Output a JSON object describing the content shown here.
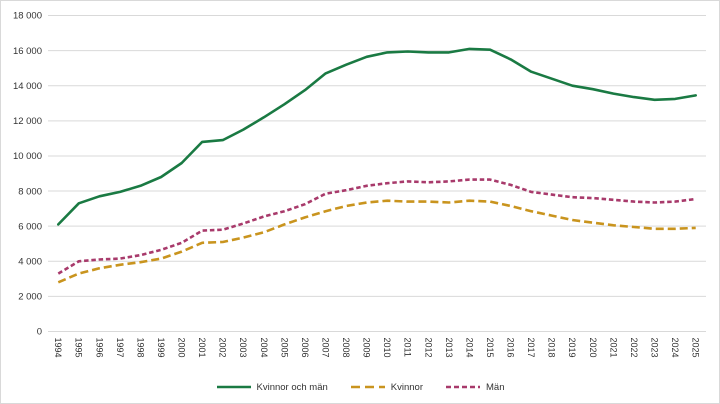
{
  "chart_data": {
    "type": "line",
    "title": "",
    "xlabel": "",
    "ylabel": "",
    "x_labels": [
      "1994",
      "1995",
      "1996",
      "1997",
      "1998",
      "1999",
      "2000",
      "2001",
      "2002",
      "2003",
      "2004",
      "2005",
      "2006",
      "2007",
      "2008",
      "2009",
      "2010",
      "2011",
      "2012",
      "2013",
      "2014",
      "2015",
      "2016",
      "2017",
      "2018",
      "2019",
      "2020",
      "2021",
      "2022",
      "2023",
      "2024",
      "2025"
    ],
    "series": [
      {
        "name": "Kvinnor och män",
        "color": "#1a7a43",
        "dash": "solid",
        "values": [
          6100,
          7300,
          7700,
          7950,
          8300,
          8800,
          9600,
          10800,
          10900,
          11500,
          12200,
          12950,
          13750,
          14700,
          15200,
          15650,
          15900,
          15950,
          15900,
          15900,
          16100,
          16050,
          15500,
          14800,
          14400,
          14000,
          13800,
          13550,
          13350,
          13200,
          13250,
          13450
        ]
      },
      {
        "name": "Kvinnor",
        "color": "#c9941e",
        "dash": "long",
        "values": [
          2800,
          3300,
          3600,
          3800,
          3950,
          4150,
          4550,
          5050,
          5100,
          5350,
          5650,
          6100,
          6500,
          6850,
          7150,
          7350,
          7450,
          7400,
          7400,
          7350,
          7450,
          7400,
          7150,
          6850,
          6600,
          6350,
          6200,
          6050,
          5950,
          5850,
          5850,
          5900
        ]
      },
      {
        "name": "Män",
        "color": "#a83a6b",
        "dash": "short",
        "values": [
          3300,
          4000,
          4100,
          4150,
          4350,
          4650,
          5050,
          5750,
          5800,
          6150,
          6550,
          6850,
          7250,
          7850,
          8050,
          8300,
          8450,
          8550,
          8500,
          8550,
          8650,
          8650,
          8350,
          7950,
          7800,
          7650,
          7600,
          7500,
          7400,
          7350,
          7400,
          7550
        ]
      }
    ],
    "ylim": [
      0,
      18000
    ],
    "ytick_step": 2000,
    "ytick_labels": [
      "0",
      "2 000",
      "4 000",
      "6 000",
      "8 000",
      "10 000",
      "12 000",
      "14 000",
      "16 000",
      "18 000"
    ],
    "grid": "horizontal",
    "legend_position": "bottom"
  },
  "style": {
    "grid_color": "#d9d9d9",
    "axis_text_color": "#333333",
    "frame_border_color": "#d9d9d9",
    "background": "#ffffff"
  }
}
